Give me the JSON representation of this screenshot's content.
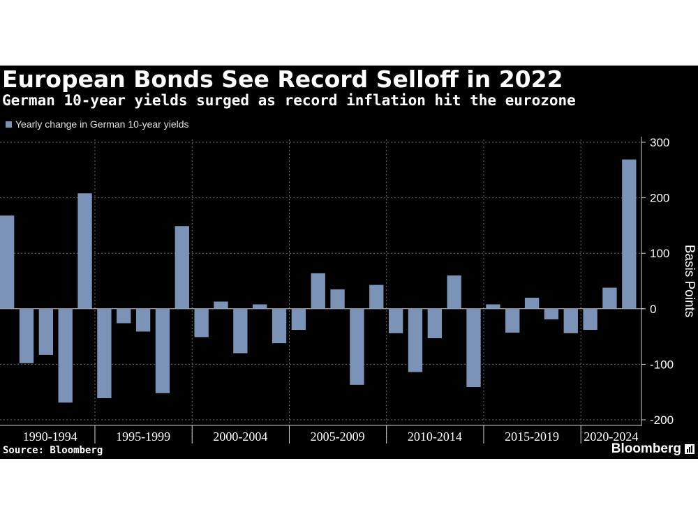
{
  "title": "European Bonds See Record Selloff in 2022",
  "subtitle": "German 10-year yields surged as record inflation hit the eurozone",
  "source": "Source: Bloomberg",
  "brand": "Bloomberg",
  "colors": {
    "background": "#000000",
    "bar": "#7b93b6",
    "grid": "#555555",
    "text": "#ffffff"
  },
  "chart_data": {
    "type": "bar",
    "series": [
      {
        "name": "Yearly change in German 10-year yields",
        "x": [
          1990,
          1991,
          1992,
          1993,
          1994,
          1995,
          1996,
          1997,
          1998,
          1999,
          2000,
          2001,
          2002,
          2003,
          2004,
          2005,
          2006,
          2007,
          2008,
          2009,
          2010,
          2011,
          2012,
          2013,
          2014,
          2015,
          2016,
          2017,
          2018,
          2019,
          2020,
          2021,
          2022
        ],
        "values": [
          168,
          -98,
          -83,
          -169,
          208,
          -161,
          -26,
          -41,
          -152,
          149,
          -51,
          13,
          -80,
          8,
          -62,
          -38,
          64,
          35,
          -137,
          43,
          -44,
          -114,
          -53,
          60,
          -141,
          8,
          -43,
          20,
          -19,
          -44,
          -38,
          38,
          269
        ]
      }
    ],
    "x_groups": [
      "1990-1994",
      "1995-1999",
      "2000-2004",
      "2005-2009",
      "2010-2014",
      "2015-2019",
      "2020-2024"
    ],
    "y_ticks": [
      300,
      200,
      100,
      0,
      -100,
      -200
    ],
    "y_tick_labels": [
      "300",
      "200",
      "100",
      "0",
      "-100",
      "-200"
    ],
    "ylim": [
      -205,
      300
    ],
    "ylabel": "Basis Points",
    "y_axis_position": "right",
    "grid": "dotted"
  }
}
